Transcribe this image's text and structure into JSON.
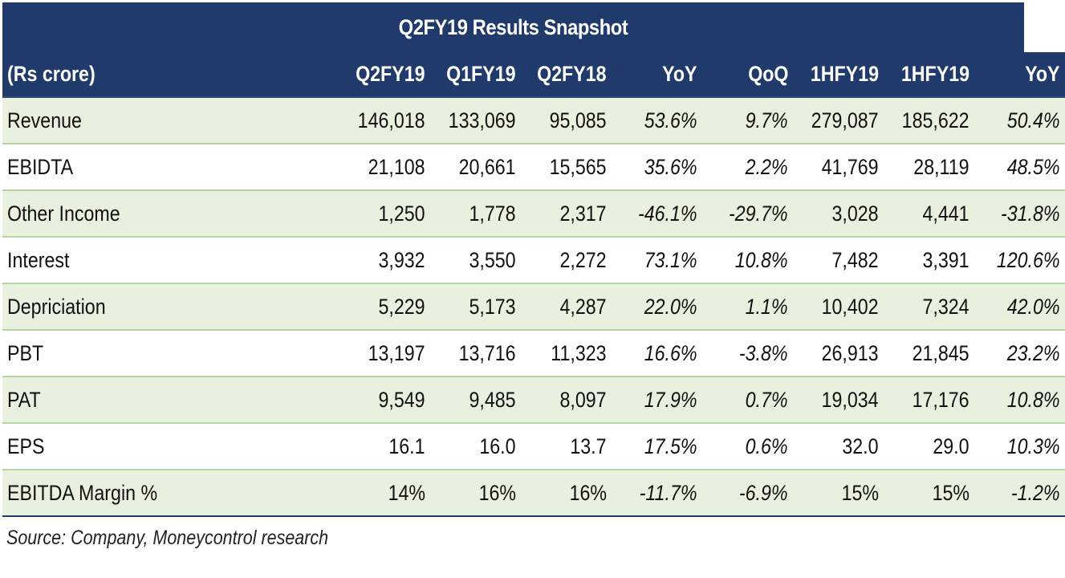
{
  "title": "Q2FY19 Results Snapshot",
  "header": {
    "unit_label": "(Rs crore)",
    "columns": [
      "Q2FY19",
      "Q1FY19",
      "Q2FY18",
      "YoY",
      "QoQ",
      "1HFY19",
      "1HFY19",
      "YoY"
    ]
  },
  "rows": [
    {
      "label": "Revenue",
      "values": [
        "146,018",
        "133,069",
        "95,085",
        "53.6%",
        "9.7%",
        "279,087",
        "185,622",
        "50.4%"
      ]
    },
    {
      "label": "EBIDTA",
      "values": [
        "21,108",
        "20,661",
        "15,565",
        "35.6%",
        "2.2%",
        "41,769",
        "28,119",
        "48.5%"
      ]
    },
    {
      "label": "Other Income",
      "values": [
        "1,250",
        "1,778",
        "2,317",
        "-46.1%",
        "-29.7%",
        "3,028",
        "4,441",
        "-31.8%"
      ]
    },
    {
      "label": "Interest",
      "values": [
        "3,932",
        "3,550",
        "2,272",
        "73.1%",
        "10.8%",
        "7,482",
        "3,391",
        "120.6%"
      ]
    },
    {
      "label": "Depriciation",
      "values": [
        "5,229",
        "5,173",
        "4,287",
        "22.0%",
        "1.1%",
        "10,402",
        "7,324",
        "42.0%"
      ]
    },
    {
      "label": "PBT",
      "values": [
        "13,197",
        "13,716",
        "11,323",
        "16.6%",
        "-3.8%",
        "26,913",
        "21,845",
        "23.2%"
      ]
    },
    {
      "label": "PAT",
      "values": [
        "9,549",
        "9,485",
        "8,097",
        "17.9%",
        "0.7%",
        "19,034",
        "17,176",
        "10.8%"
      ]
    },
    {
      "label": "EPS",
      "values": [
        "16.1",
        "16.0",
        "13.7",
        "17.5%",
        "0.6%",
        "32.0",
        "29.0",
        "10.3%"
      ]
    },
    {
      "label": "EBITDA Margin %",
      "values": [
        "14%",
        "16%",
        "16%",
        "-11.7%",
        "-6.9%",
        "15%",
        "15%",
        "-1.2%"
      ]
    }
  ],
  "source": "Source: Company, Moneycontrol research",
  "colors": {
    "header_bg": "#1f3a6b",
    "band_bg": "#e7f1de",
    "divider": "#b8d4a0"
  }
}
